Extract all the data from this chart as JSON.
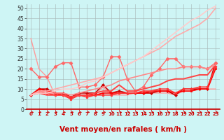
{
  "xlabel": "Vent moyen/en rafales ( km/h )",
  "xlim": [
    -0.5,
    23.5
  ],
  "ylim": [
    0,
    52
  ],
  "yticks": [
    0,
    5,
    10,
    15,
    20,
    25,
    30,
    35,
    40,
    45,
    50
  ],
  "xticks": [
    0,
    1,
    2,
    3,
    4,
    5,
    6,
    7,
    8,
    9,
    10,
    11,
    12,
    13,
    14,
    15,
    16,
    17,
    18,
    19,
    20,
    21,
    22,
    23
  ],
  "background_color": "#cef5f5",
  "grid_color": "#aabbbb",
  "lines": [
    {
      "x": [
        0,
        1,
        2,
        3,
        4,
        5,
        6,
        7,
        8,
        9,
        10,
        11,
        12,
        13,
        14,
        15,
        16,
        17,
        18,
        19,
        20,
        21,
        22,
        23
      ],
      "y": [
        35,
        20,
        16,
        7,
        7,
        5,
        7,
        7,
        7,
        11,
        7,
        7,
        7,
        8,
        8,
        8,
        8,
        8,
        7,
        9,
        9,
        10,
        10,
        10
      ],
      "color": "#ff9999",
      "lw": 1.0,
      "marker": null
    },
    {
      "x": [
        0,
        1,
        2,
        3,
        4,
        5,
        6,
        7,
        8,
        9,
        10,
        11,
        12,
        13,
        14,
        15,
        16,
        17,
        18,
        19,
        20,
        21,
        22,
        23
      ],
      "y": [
        7,
        10,
        10,
        8,
        8,
        6,
        8,
        8,
        8,
        12,
        8,
        9,
        8,
        8,
        8,
        8,
        9,
        9,
        7,
        10,
        10,
        10,
        10,
        23
      ],
      "color": "#cc0000",
      "lw": 1.2,
      "marker": "D",
      "ms": 2.0
    },
    {
      "x": [
        0,
        1,
        2,
        3,
        4,
        5,
        6,
        7,
        8,
        9,
        10,
        11,
        12,
        13,
        14,
        15,
        16,
        17,
        18,
        19,
        20,
        21,
        22,
        23
      ],
      "y": [
        7,
        10,
        9,
        8,
        7,
        6,
        7,
        7,
        7,
        8,
        8,
        8,
        8,
        8,
        8,
        9,
        9,
        9,
        8,
        9,
        9,
        10,
        10,
        20
      ],
      "color": "#ff0000",
      "lw": 1.2,
      "marker": "s",
      "ms": 2.0
    },
    {
      "x": [
        0,
        1,
        2,
        3,
        4,
        5,
        6,
        7,
        8,
        9,
        10,
        11,
        12,
        13,
        14,
        15,
        16,
        17,
        18,
        19,
        20,
        21,
        22,
        23
      ],
      "y": [
        7,
        9,
        8,
        7,
        7,
        5,
        7,
        6,
        7,
        7,
        7,
        8,
        8,
        8,
        9,
        9,
        10,
        10,
        8,
        10,
        10,
        11,
        11,
        21
      ],
      "color": "#ff3333",
      "lw": 1.2,
      "marker": "o",
      "ms": 2.0
    },
    {
      "x": [
        0,
        1,
        2,
        3,
        4,
        5,
        6,
        7,
        8,
        9,
        10,
        11,
        12,
        13,
        14,
        15,
        16,
        17,
        18,
        19,
        20,
        21,
        22,
        23
      ],
      "y": [
        20,
        16,
        16,
        21,
        23,
        23,
        11,
        11,
        12,
        16,
        26,
        26,
        15,
        9,
        11,
        17,
        20,
        25,
        25,
        21,
        21,
        21,
        20,
        23
      ],
      "color": "#ff6666",
      "lw": 1.0,
      "marker": "D",
      "ms": 2.5
    },
    {
      "x": [
        0,
        1,
        2,
        3,
        4,
        5,
        6,
        7,
        8,
        9,
        10,
        11,
        12,
        13,
        14,
        15,
        16,
        17,
        18,
        19,
        20,
        21,
        22,
        23
      ],
      "y": [
        7,
        8,
        7,
        7,
        7,
        6,
        7,
        7,
        8,
        9,
        9,
        12,
        9,
        9,
        10,
        11,
        12,
        14,
        15,
        15,
        16,
        17,
        17,
        22
      ],
      "color": "#ff4444",
      "lw": 1.4,
      "marker": null
    },
    {
      "x": [
        0,
        1,
        2,
        3,
        4,
        5,
        6,
        7,
        8,
        9,
        10,
        11,
        12,
        13,
        14,
        15,
        16,
        17,
        18,
        19,
        20,
        21,
        22,
        23
      ],
      "y": [
        7,
        8,
        8,
        8,
        8,
        7,
        8,
        9,
        10,
        11,
        12,
        14,
        15,
        16,
        17,
        18,
        19,
        20,
        20,
        21,
        21,
        21,
        20,
        22
      ],
      "color": "#ff8888",
      "lw": 1.2,
      "marker": null
    },
    {
      "x": [
        0,
        1,
        2,
        3,
        4,
        5,
        6,
        7,
        8,
        9,
        10,
        11,
        12,
        13,
        14,
        15,
        16,
        17,
        18,
        19,
        20,
        21,
        22,
        23
      ],
      "y": [
        7,
        9,
        9,
        10,
        11,
        12,
        13,
        14,
        15,
        16,
        18,
        20,
        22,
        24,
        26,
        28,
        30,
        33,
        36,
        38,
        40,
        42,
        45,
        50
      ],
      "color": "#ffaaaa",
      "lw": 1.2,
      "marker": null
    },
    {
      "x": [
        0,
        1,
        2,
        3,
        4,
        5,
        6,
        7,
        8,
        9,
        10,
        11,
        12,
        13,
        14,
        15,
        16,
        17,
        18,
        19,
        20,
        21,
        22,
        23
      ],
      "y": [
        7,
        8,
        8,
        9,
        10,
        10,
        11,
        13,
        14,
        16,
        18,
        20,
        22,
        24,
        26,
        29,
        32,
        35,
        38,
        41,
        44,
        46,
        49,
        51
      ],
      "color": "#ffcccc",
      "lw": 1.2,
      "marker": null
    }
  ],
  "xlabel_color": "#cc0000",
  "xlabel_fontsize": 7.5,
  "tick_fontsize": 5.5,
  "xtick_fontsize": 5.0
}
